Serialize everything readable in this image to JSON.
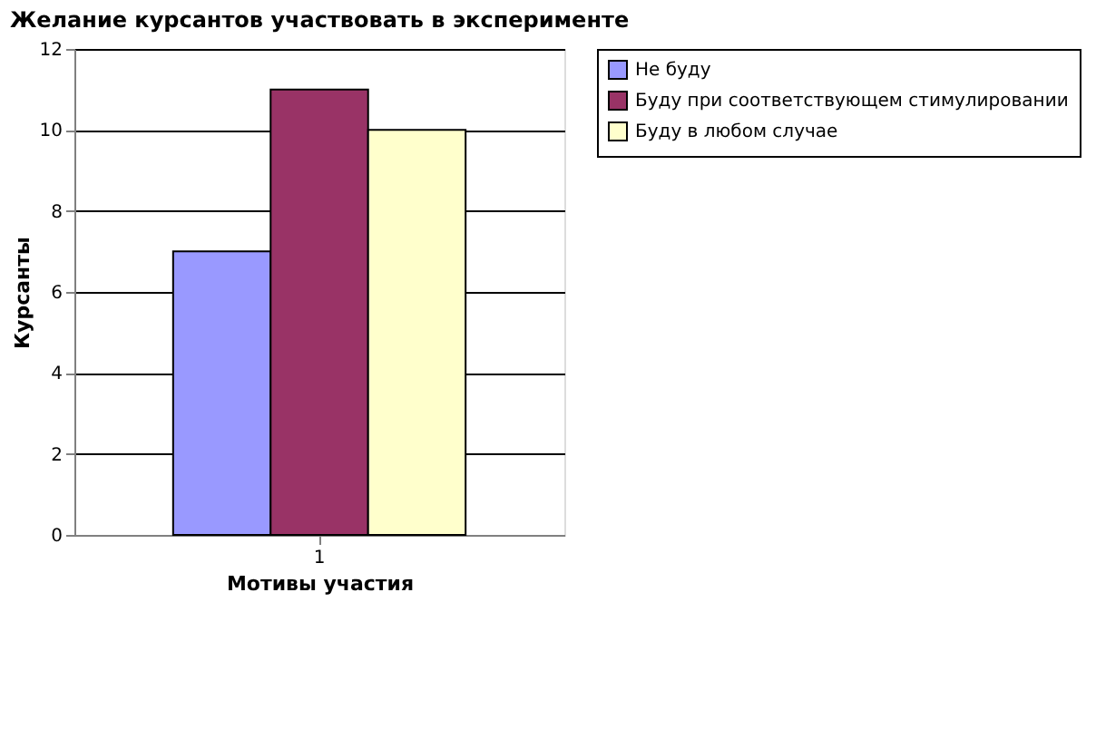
{
  "chart_data": {
    "type": "bar",
    "title": "Желание курсантов участвовать в эксперименте",
    "xlabel": "Мотивы участия",
    "ylabel": "Курсанты",
    "categories": [
      "1"
    ],
    "series": [
      {
        "name": "Не буду",
        "color": "#9999ff",
        "values": [
          7
        ]
      },
      {
        "name": "Буду при соответствующем стимулировании",
        "color": "#993366",
        "values": [
          11
        ]
      },
      {
        "name": "Буду в любом случае",
        "color": "#ffffcc",
        "values": [
          10
        ]
      }
    ],
    "ylim": [
      0,
      12
    ],
    "yticks": [
      0,
      2,
      4,
      6,
      8,
      10,
      12
    ],
    "grid": "y",
    "legend": "right"
  }
}
